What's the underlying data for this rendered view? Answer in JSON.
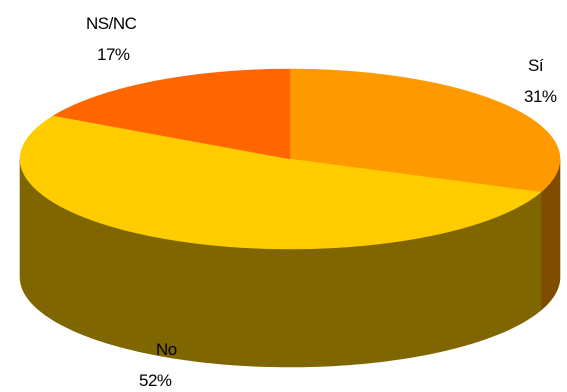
{
  "chart_data": {
    "type": "pie",
    "style": "3d",
    "slices": [
      {
        "label": "Sí",
        "percent_label": "31%",
        "value": 31,
        "color": "#FF9900",
        "side_color": "#7F4C00"
      },
      {
        "label": "No",
        "percent_label": "52%",
        "value": 52,
        "color": "#FFCC00",
        "side_color": "#7F6600"
      },
      {
        "label": "NS/NC",
        "percent_label": "17%",
        "value": 17,
        "color": "#FF6600",
        "side_color": "#7F3300"
      }
    ],
    "legend": "none",
    "title": ""
  }
}
